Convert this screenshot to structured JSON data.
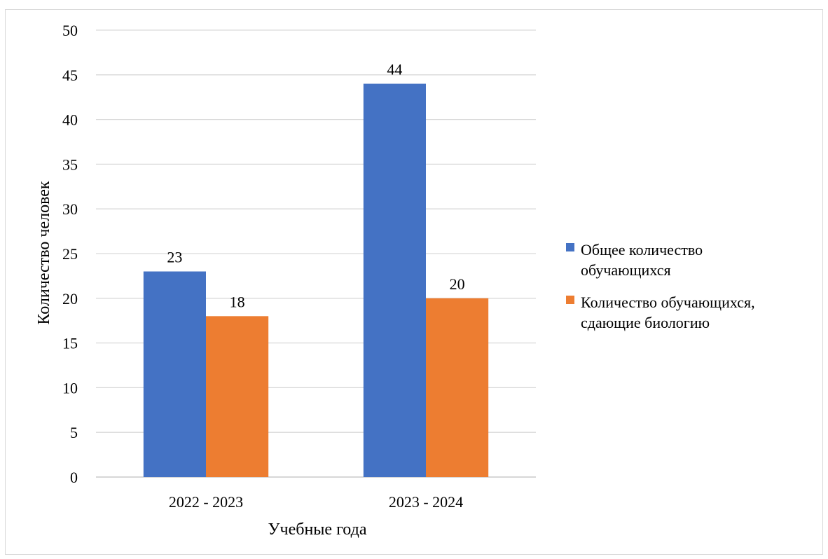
{
  "chart_data": {
    "type": "bar",
    "title": "",
    "xlabel": "Учебные года",
    "ylabel": "Количество человек",
    "ylim": [
      0,
      50
    ],
    "ytick_step": 5,
    "grid": true,
    "legend_position": "right",
    "categories": [
      "2022 - 2023",
      "2023 - 2024"
    ],
    "series": [
      {
        "name": "Общее количество обучающихся",
        "color": "#4472c4",
        "values": [
          23,
          44
        ],
        "data_labels": [
          "23",
          "44"
        ]
      },
      {
        "name": "Количество обучающихся, сдающие биологию",
        "color": "#ed7d31",
        "values": [
          18,
          20
        ],
        "data_labels": [
          "18",
          "20"
        ]
      }
    ],
    "legend": [
      {
        "lines": [
          "Общее количество",
          "обучающихся"
        ]
      },
      {
        "lines": [
          "Количество обучающихся,",
          "сдающие биологию"
        ]
      }
    ]
  }
}
